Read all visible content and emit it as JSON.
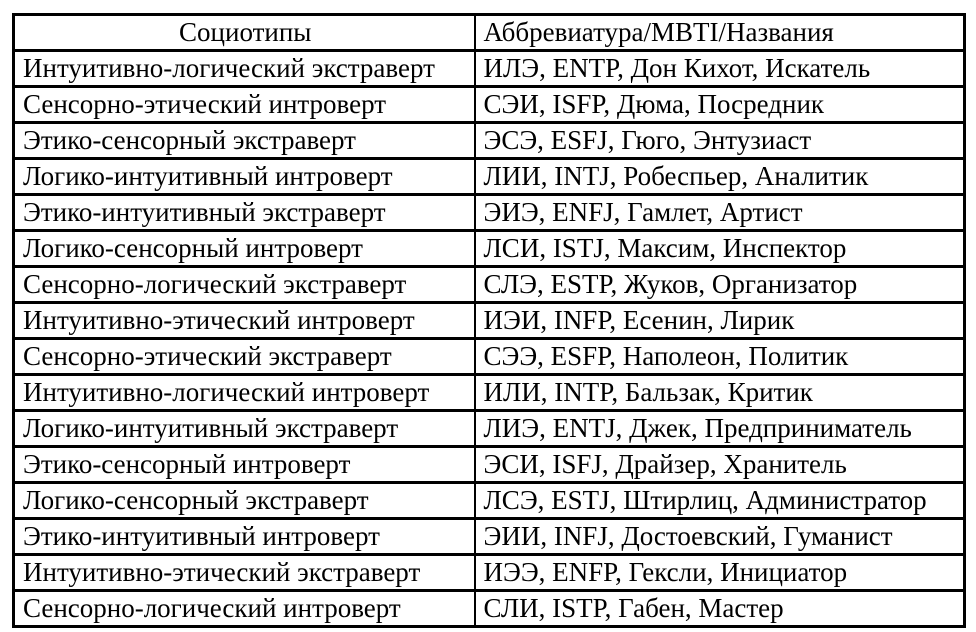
{
  "colors": {
    "background": "#ffffff",
    "border": "#000000",
    "text": "#000000"
  },
  "table": {
    "columns": [
      "Социотипы",
      "Аббревиатура/MBTI/Названия"
    ],
    "rows": [
      [
        "Интуитивно-логический экстраверт",
        "ИЛЭ, ENTP, Дон Кихот, Искатель"
      ],
      [
        "Сенсорно-этический интроверт",
        "СЭИ, ISFP, Дюма, Посредник"
      ],
      [
        "Этико-сенсорный экстраверт",
        "ЭСЭ, ESFJ, Гюго, Энтузиаст"
      ],
      [
        "Логико-интуитивный интроверт",
        "ЛИИ, INTJ, Робеспьер, Аналитик"
      ],
      [
        "Этико-интуитивный экстраверт",
        "ЭИЭ, ENFJ, Гамлет, Артист"
      ],
      [
        "Логико-сенсорный интроверт",
        "ЛСИ, ISTJ, Максим, Инспектор"
      ],
      [
        "Сенсорно-логический экстраверт",
        "СЛЭ, ESTP, Жуков, Организатор"
      ],
      [
        "Интуитивно-этический интроверт",
        "ИЭИ, INFP, Есенин, Лирик"
      ],
      [
        "Сенсорно-этический экстраверт",
        "СЭЭ, ESFP, Наполеон, Политик"
      ],
      [
        "Интуитивно-логический интроверт",
        "ИЛИ, INTP, Бальзак, Критик"
      ],
      [
        "Логико-интуитивный экстраверт",
        "ЛИЭ, ENTJ, Джек, Предприниматель"
      ],
      [
        "Этико-сенсорный интроверт",
        "ЭСИ, ISFJ, Драйзер, Хранитель"
      ],
      [
        "Логико-сенсорный экстраверт",
        "ЛСЭ, ESTJ, Штирлиц, Администратор"
      ],
      [
        "Этико-интуитивный интроверт",
        "ЭИИ, INFJ, Достоевский, Гуманист"
      ],
      [
        "Интуитивно-этический экстраверт",
        "ИЭЭ, ENFP, Гексли, Инициатор"
      ],
      [
        "Сенсорно-логический интроверт",
        "СЛИ, ISTP, Габен, Мастер"
      ]
    ]
  }
}
